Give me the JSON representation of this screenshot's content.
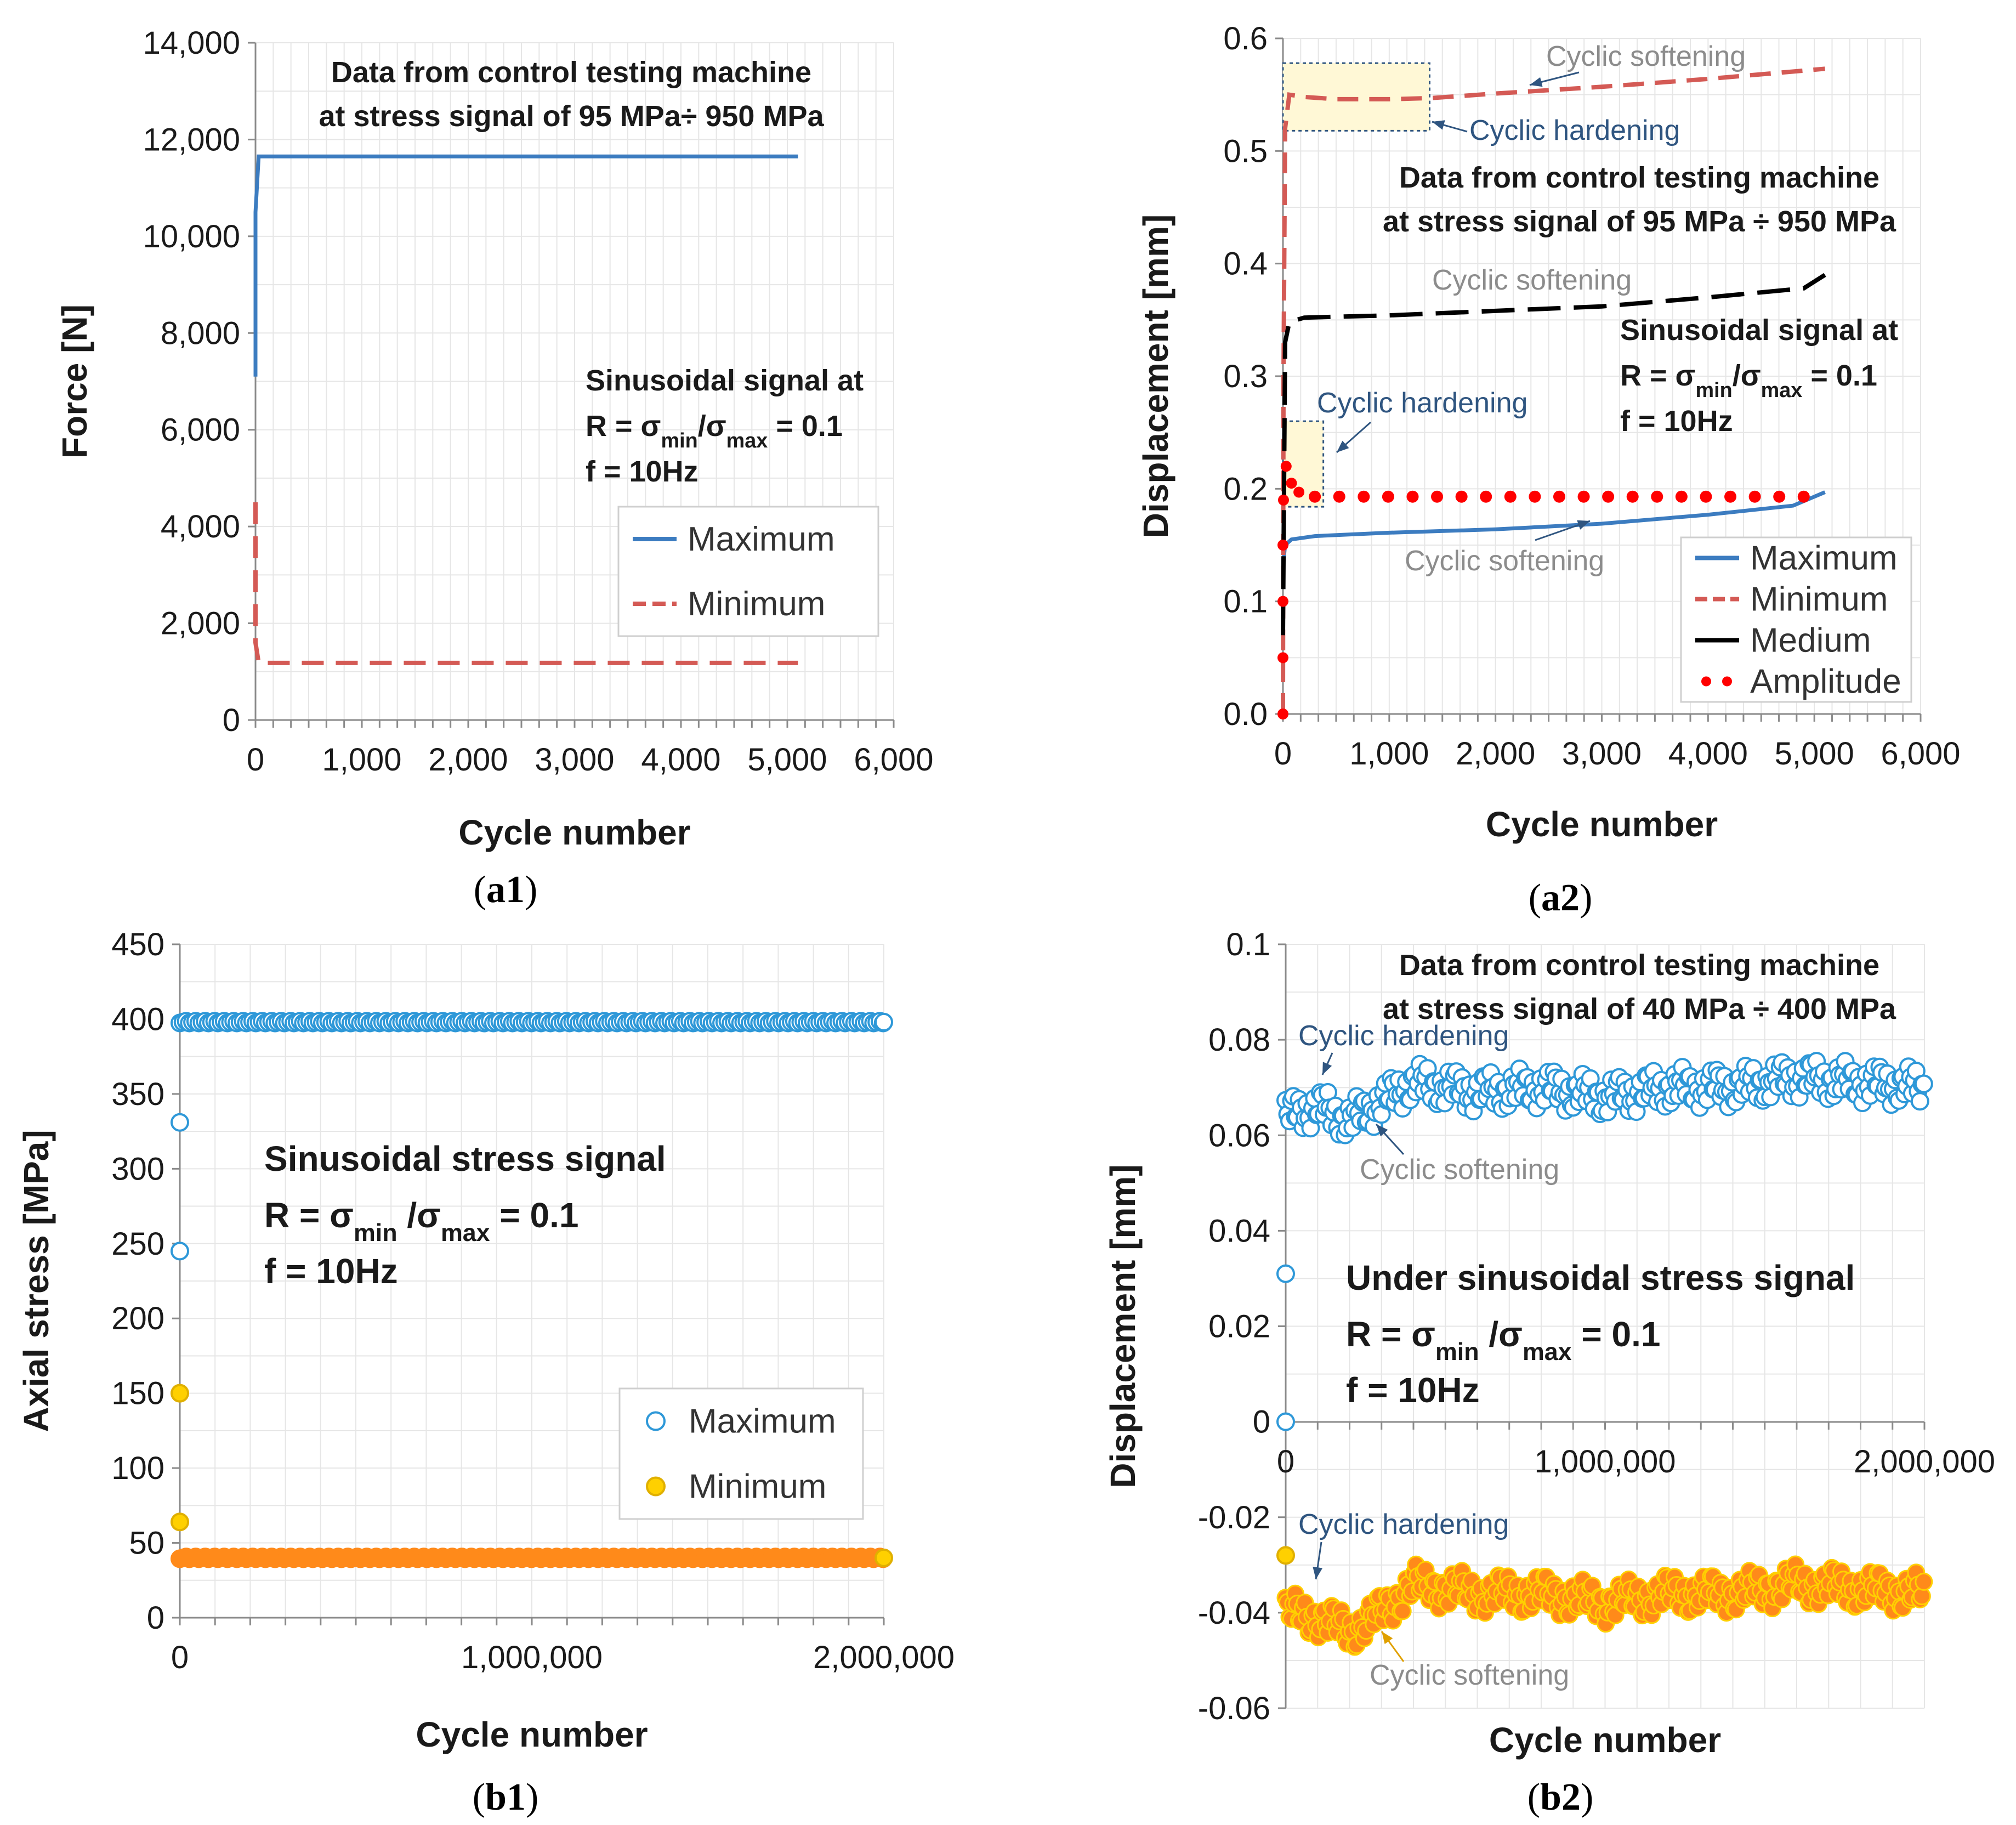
{
  "colors": {
    "max_blue": "#3c7cc0",
    "min_red": "#d45a55",
    "medium_black": "#000000",
    "amplitude_red": "#ff0000",
    "b_max_fill": "#2e98d8",
    "b_min_fill": "#ff8a1a",
    "b_min_edge": "#ffd000",
    "annotation_gray": "#8c8c8c",
    "annotation_blue": "#2f5580",
    "highlight_fill": "#fff8d6"
  },
  "chart_data": [
    {
      "id": "a1",
      "type": "line",
      "caption": "a1",
      "ylabel": "Force [N]",
      "xlabel": "Cycle number",
      "xlim": [
        0,
        6000
      ],
      "ylim": [
        0,
        14000
      ],
      "xticks": [
        "0",
        "1,000",
        "2,000",
        "3,000",
        "4,000",
        "5,000",
        "6,000"
      ],
      "yticks": [
        "0",
        "2,000",
        "4,000",
        "6,000",
        "8,000",
        "10,000",
        "12,000",
        "14,000"
      ],
      "notes": [
        "Data from control testing machine",
        "at stress signal of 95 MPa÷ 950 MPa"
      ],
      "signal_lines": [
        "Sinusoidal signal at",
        "R = σmin/σmax = 0.1",
        "f = 10Hz"
      ],
      "series": [
        {
          "name": "Maximum",
          "style": "solid",
          "x": [
            0,
            0,
            30,
            60,
            5100
          ],
          "y": [
            7100,
            10500,
            11650,
            11650,
            11650
          ]
        },
        {
          "name": "Minimum",
          "style": "dashed",
          "x": [
            0,
            0,
            30,
            5100
          ],
          "y": [
            4500,
            1600,
            1180,
            1180
          ]
        }
      ],
      "legend": [
        "Maximum",
        "Minimum"
      ]
    },
    {
      "id": "a2",
      "type": "line",
      "caption": "a2",
      "ylabel": "Displacement [mm]",
      "xlabel": "Cycle number",
      "xlim": [
        0,
        6000
      ],
      "ylim": [
        0,
        0.6
      ],
      "xticks": [
        "0",
        "1,000",
        "2,000",
        "3,000",
        "4,000",
        "5,000",
        "6,000"
      ],
      "yticks": [
        "0.0",
        "0.1",
        "0.2",
        "0.3",
        "0.4",
        "0.5",
        "0.6"
      ],
      "notes": [
        "Data from control testing machine",
        "at stress signal of 95 MPa ÷ 950 MPa"
      ],
      "signal_lines": [
        "Sinusoidal signal at",
        "R = σmin/σmax = 0.1",
        "f = 10Hz"
      ],
      "annotations": [
        "Cyclic softening",
        "Cyclic hardening",
        "Cyclic softening",
        "Cyclic hardening",
        "Cyclic softening"
      ],
      "series": [
        {
          "name": "Maximum",
          "style": "solid",
          "x": [
            0,
            20,
            80,
            300,
            1000,
            2000,
            3000,
            4000,
            4800,
            5100
          ],
          "y": [
            0.13,
            0.15,
            0.155,
            0.158,
            0.161,
            0.164,
            0.169,
            0.177,
            0.185,
            0.197
          ]
        },
        {
          "name": "Minimum",
          "style": "dashed",
          "x": [
            0,
            5,
            20,
            60,
            200,
            500,
            1000,
            1400,
            2000,
            3000,
            4000,
            5100
          ],
          "y": [
            0.0,
            0.3,
            0.52,
            0.55,
            0.548,
            0.546,
            0.546,
            0.547,
            0.551,
            0.557,
            0.564,
            0.573
          ]
        },
        {
          "name": "Medium",
          "style": "longdash",
          "x": [
            0,
            20,
            60,
            200,
            1000,
            2000,
            3000,
            4000,
            4900,
            5100
          ],
          "y": [
            0.07,
            0.33,
            0.348,
            0.352,
            0.354,
            0.358,
            0.362,
            0.37,
            0.378,
            0.39
          ]
        },
        {
          "name": "Amplitude",
          "style": "dotted",
          "x": [
            0,
            10,
            50,
            150,
            300,
            600,
            1000,
            2000,
            3000,
            4000,
            5100
          ],
          "y": [
            0.0,
            0.12,
            0.21,
            0.2,
            0.193,
            0.193,
            0.193,
            0.193,
            0.193,
            0.193,
            0.193
          ]
        }
      ],
      "legend": [
        "Maximum",
        "Minimum",
        "Medium",
        "Amplitude"
      ]
    },
    {
      "id": "b1",
      "type": "scatter",
      "caption": "b1",
      "ylabel": "Axial stress [MPa]",
      "xlabel": "Cycle number",
      "xlim": [
        0,
        2000000
      ],
      "ylim": [
        0,
        450
      ],
      "xticks": [
        "0",
        "1,000,000",
        "2,000,000"
      ],
      "yticks": [
        "0",
        "50",
        "100",
        "150",
        "200",
        "250",
        "300",
        "350",
        "400",
        "450"
      ],
      "signal_lines": [
        "Sinusoidal stress signal",
        "R = σmin /σmax = 0.1",
        "f = 10Hz"
      ],
      "series": [
        {
          "name": "Maximum",
          "marker": "open-circle",
          "outliers": {
            "x": [
              0,
              0
            ],
            "y": [
              331,
              245
            ]
          },
          "steady_value": 398,
          "x_end": 2000000
        },
        {
          "name": "Minimum",
          "marker": "filled-circle",
          "outliers": {
            "x": [
              0,
              0
            ],
            "y": [
              150,
              64
            ]
          },
          "steady_value": 40,
          "x_end": 2000000
        }
      ],
      "legend": [
        "Maximum",
        "Minimum"
      ]
    },
    {
      "id": "b2",
      "type": "scatter",
      "caption": "b2",
      "ylabel": "Displacement [mm]",
      "xlabel": "Cycle number",
      "xlim": [
        0,
        2000000
      ],
      "ylim": [
        -0.06,
        0.1
      ],
      "xticks": [
        "0",
        "1,000,000",
        "2,000,000"
      ],
      "yticks": [
        "-0.06",
        "-0.04",
        "-0.02",
        "0",
        "0.02",
        "0.04",
        "0.06",
        "0.08",
        "0.1"
      ],
      "notes": [
        "Data from control testing machine",
        "at stress signal of 40 MPa ÷ 400 MPa"
      ],
      "signal_lines": [
        "Under sinusoidal stress signal",
        "R = σmin /σmax = 0.1",
        "f = 10Hz"
      ],
      "annotations": [
        "Cyclic hardening",
        "Cyclic softening",
        "Cyclic hardening",
        "Cyclic softening"
      ],
      "series": [
        {
          "name": "Maximum",
          "marker": "open-circle",
          "outliers": {
            "x": [
              0,
              0
            ],
            "y": [
              0.031,
              0.0
            ]
          },
          "trend_x": [
            0,
            100000,
            200000,
            300000,
            400000,
            600000,
            800000,
            1000000,
            1200000,
            1400000,
            1600000,
            1800000,
            2000000
          ],
          "trend_y": [
            0.064,
            0.066,
            0.063,
            0.067,
            0.071,
            0.069,
            0.07,
            0.068,
            0.07,
            0.07,
            0.072,
            0.071,
            0.07
          ]
        },
        {
          "name": "Minimum",
          "marker": "filled-circle",
          "outliers": {
            "x": [
              0
            ],
            "y": [
              -0.028
            ]
          },
          "trend_x": [
            0,
            100000,
            200000,
            300000,
            400000,
            600000,
            800000,
            1000000,
            1200000,
            1400000,
            1600000,
            1800000,
            2000000
          ],
          "trend_y": [
            -0.04,
            -0.041,
            -0.044,
            -0.04,
            -0.034,
            -0.036,
            -0.036,
            -0.038,
            -0.036,
            -0.036,
            -0.034,
            -0.035,
            -0.036
          ]
        }
      ]
    }
  ]
}
